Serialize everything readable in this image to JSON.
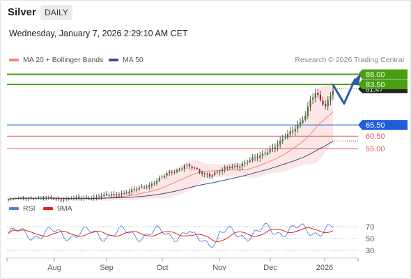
{
  "header": {
    "symbol": "Silver",
    "timeframe": "DAILY",
    "datetime": "Wednesday, January 7, 2026 2:29:10 AM CET"
  },
  "legend": {
    "ma20_bb": "MA 20 + Bollinger Bands",
    "ma50": "MA 50",
    "rsi": "RSI",
    "rsi_ma": "9MA",
    "credit": "Research © 2026 Trading Central"
  },
  "colors": {
    "resistance": "#4a9e12",
    "pivot": "#1d5fd8",
    "support": "#e05a5a",
    "ma20": "#f08080",
    "ma50": "#3a4a8c",
    "bollinger_fill": "#fde3e3",
    "rsi": "#5a7fd8",
    "rsi_ma": "#e02020",
    "candle_up": "#3a7a2a",
    "candle_down": "#aa2222"
  },
  "chart_data": [
    {
      "type": "candlestick",
      "title": "",
      "x_labels": [
        "Aug",
        "Sep",
        "Oct",
        "Nov",
        "Dec",
        "2026"
      ],
      "ylim": [
        28,
        92
      ],
      "levels": [
        {
          "value": 88.0,
          "label": "88.00",
          "role": "resistance"
        },
        {
          "value": 83.5,
          "label": "83.50",
          "role": "resistance"
        },
        {
          "value": 65.5,
          "label": "65.50",
          "role": "pivot"
        },
        {
          "value": 60.5,
          "label": "60.50",
          "role": "support"
        },
        {
          "value": 55.0,
          "label": "55.00",
          "role": "support"
        }
      ],
      "current_price_label": "81.47",
      "scenario": "Up to 88.00 after a dip, pivot 65.50"
    },
    {
      "type": "line",
      "title": "",
      "series": [
        {
          "name": "RSI"
        },
        {
          "name": "9MA"
        }
      ],
      "ylim": [
        20,
        80
      ],
      "y_ticks": [
        "70",
        "50",
        "30"
      ]
    }
  ]
}
